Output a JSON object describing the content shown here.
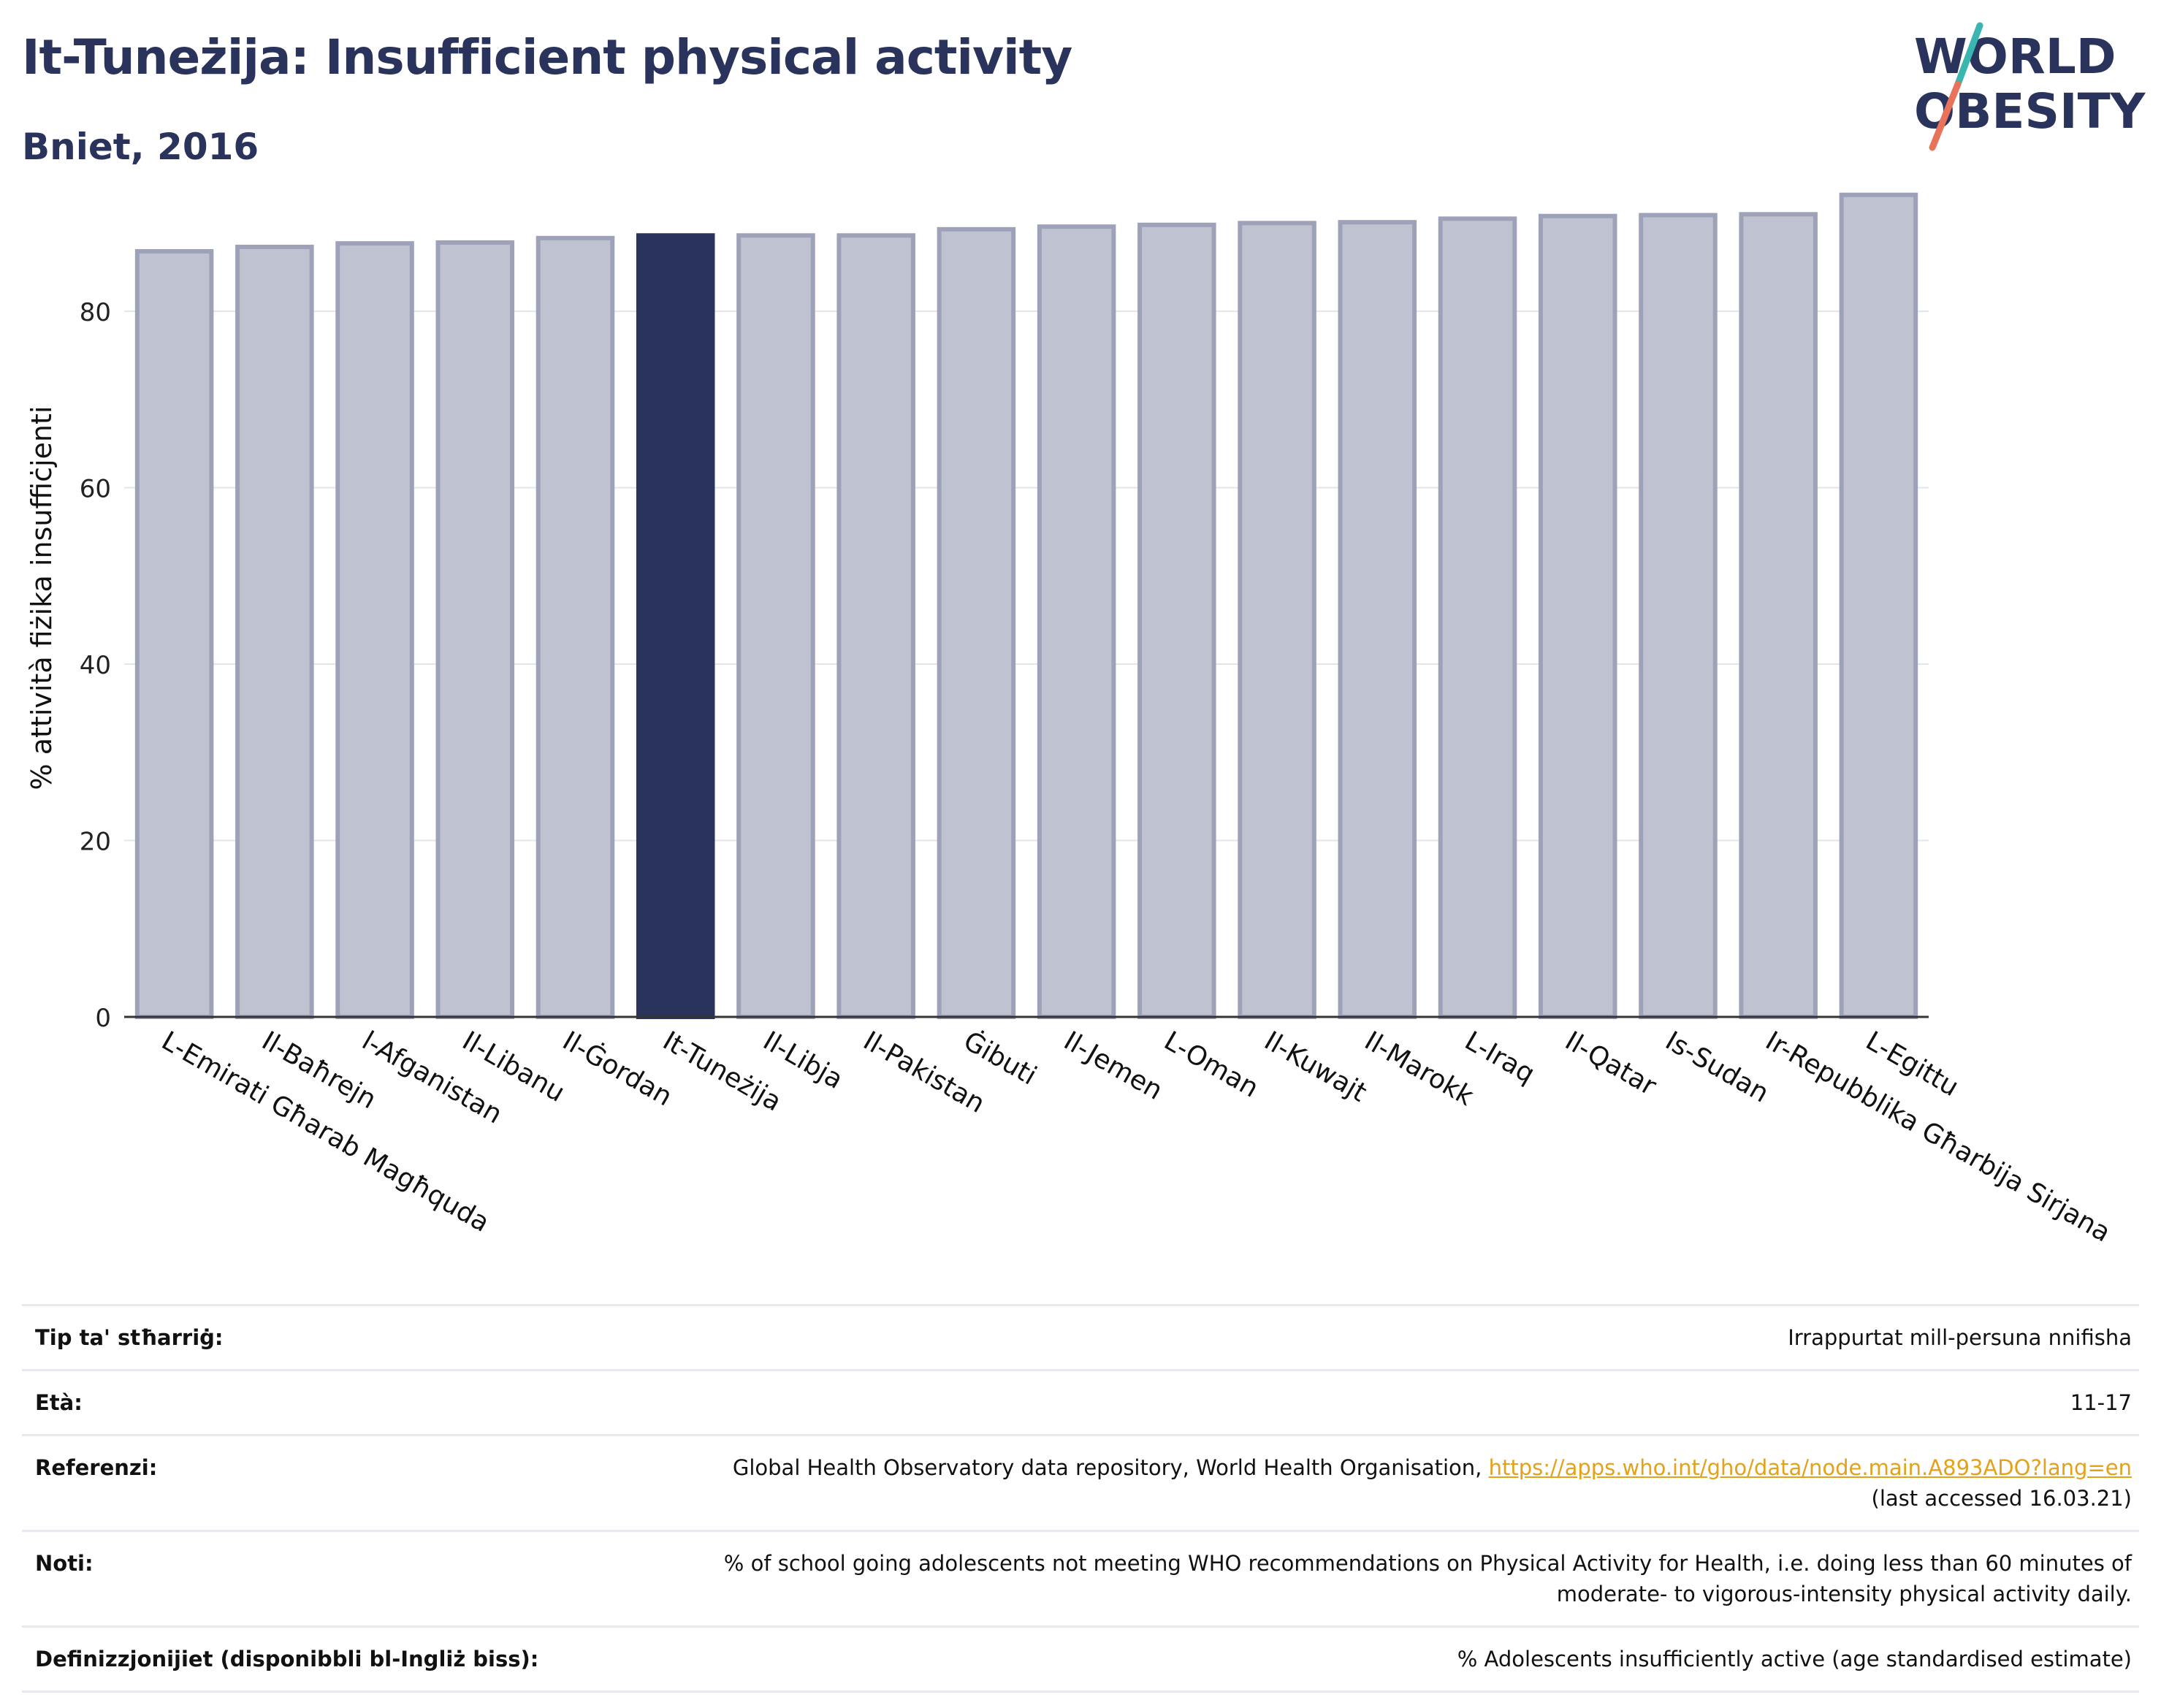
{
  "header": {
    "title": "It-Tuneżija: Insufficient physical activity",
    "subtitle": "Bniet, 2016"
  },
  "logo": {
    "line1": "WORLD",
    "line2": "OBESITY",
    "colors": {
      "text": "#2a335c",
      "slash_top": "#3ab5b0",
      "slash_bottom": "#e8735a"
    }
  },
  "chart_data": {
    "type": "bar",
    "ylabel": "% attività fiżika insuffiċjenti",
    "xlabel": "",
    "ylim": [
      0,
      95
    ],
    "yticks": [
      0,
      20,
      40,
      60,
      80
    ],
    "grid": true,
    "highlight": "It-Tuneżija",
    "colors": {
      "bar": "#bfc2d0",
      "bar_border": "#9ea2b8",
      "highlight": "#2a335c",
      "axis": "#333333",
      "grid": "#e3e5ea"
    },
    "categories": [
      "L-Emirati Għarab Magħquda",
      "Il-Baħrejn",
      "l-Afganistan",
      "Il-Libanu",
      "Il-Ġordan",
      "It-Tuneżija",
      "Il-Libja",
      "Il-Pakistan",
      "Ġibuti",
      "Il-Jemen",
      "L-Oman",
      "Il-Kuwajt",
      "Il-Marokk",
      "L-Iraq",
      "Il-Qatar",
      "Is-Sudan",
      "Ir-Repubblika Għarbija Sirjana",
      "L-Egittu"
    ],
    "values": [
      86.8,
      87.3,
      87.7,
      87.8,
      88.3,
      88.6,
      88.6,
      88.6,
      89.3,
      89.6,
      89.8,
      90.0,
      90.1,
      90.5,
      90.8,
      90.9,
      91.0,
      93.2
    ]
  },
  "meta": {
    "rows": [
      {
        "key": "Tip ta' stħarriġ:",
        "value": "Irrappurtat mill-persuna nnifisha"
      },
      {
        "key": "Età:",
        "value": "11-17"
      },
      {
        "key": "Referenzi:",
        "value": "Global Health Observatory data repository, World Health Organisation, ",
        "link": "https://apps.who.int/gho/data/node.main.A893ADO?lang=en",
        "value2": "(last accessed 16.03.21)"
      },
      {
        "key": "Noti:",
        "value": "% of school going adolescents not meeting WHO recommendations on Physical Activity for Health, i.e. doing less than 60 minutes of moderate- to vigorous-intensity physical activity daily."
      },
      {
        "key": "Definizzjonijiet (disponibbli bl-Ingliż biss):",
        "value": "% Adolescents insufficiently active (age standardised estimate)"
      }
    ]
  }
}
